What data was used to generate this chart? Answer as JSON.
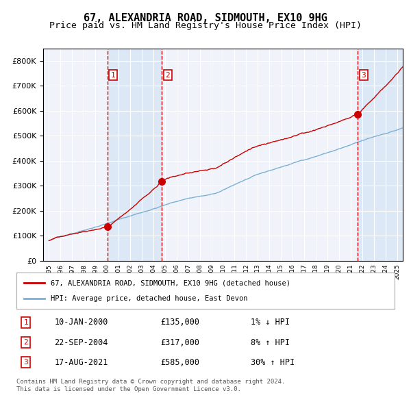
{
  "title": "67, ALEXANDRIA ROAD, SIDMOUTH, EX10 9HG",
  "subtitle": "Price paid vs. HM Land Registry's House Price Index (HPI)",
  "title_fontsize": 11,
  "subtitle_fontsize": 9.5,
  "background_color": "#ffffff",
  "plot_bg_color": "#f0f4fa",
  "grid_color": "#ffffff",
  "hpi_color": "#7ab0d4",
  "price_color": "#cc0000",
  "sale_marker_color": "#cc0000",
  "dashed_line_color": "#cc0000",
  "shade_color": "#dce8f5",
  "ylim": [
    0,
    850000
  ],
  "yticks": [
    0,
    100000,
    200000,
    300000,
    400000,
    500000,
    600000,
    700000,
    800000
  ],
  "x_start_year": 1995,
  "x_end_year": 2025,
  "sale1_date": 2000.03,
  "sale1_price": 135000,
  "sale2_date": 2004.73,
  "sale2_price": 317000,
  "sale3_date": 2021.63,
  "sale3_price": 585000,
  "legend_line1": "67, ALEXANDRIA ROAD, SIDMOUTH, EX10 9HG (detached house)",
  "legend_line2": "HPI: Average price, detached house, East Devon",
  "table_rows": [
    {
      "num": "1",
      "date": "10-JAN-2000",
      "price": "£135,000",
      "hpi": "1% ↓ HPI"
    },
    {
      "num": "2",
      "date": "22-SEP-2004",
      "price": "£317,000",
      "hpi": "8% ↑ HPI"
    },
    {
      "num": "3",
      "date": "17-AUG-2021",
      "price": "£585,000",
      "hpi": "30% ↑ HPI"
    }
  ],
  "footer": "Contains HM Land Registry data © Crown copyright and database right 2024.\nThis data is licensed under the Open Government Licence v3.0."
}
